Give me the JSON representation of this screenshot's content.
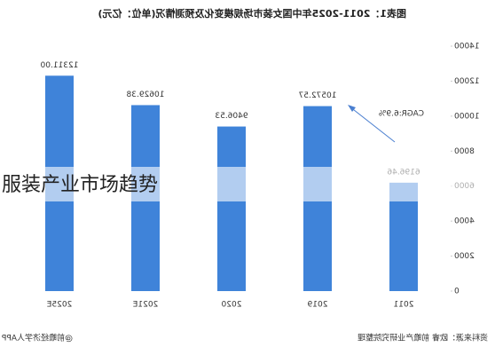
{
  "overlay_text": "服装产业市场趋势",
  "chart_data": {
    "type": "bar",
    "title": "图表1：2011-2025年中国女装市场规模变化及预测情况(单位：亿元)",
    "categories": [
      "2011",
      "2019",
      "2020",
      "2021E",
      "2025E"
    ],
    "values": [
      6196.46,
      10572.57,
      9406.53,
      10629.38,
      12311.0
    ],
    "value_labels": [
      "6196.46",
      "10572.57",
      "9406.53",
      "10629.38",
      "12311.00"
    ],
    "color": "#3f83d9",
    "ylim": [
      0,
      14000
    ],
    "yticks": [
      0,
      2000,
      4000,
      6000,
      8000,
      10000,
      12000,
      14000
    ],
    "annotation": "CAGR:6.9%",
    "source": "资料来源：欧睿 前瞻产业研究院整理",
    "watermark": "@前瞻经济学人APP",
    "mirrored": true
  }
}
